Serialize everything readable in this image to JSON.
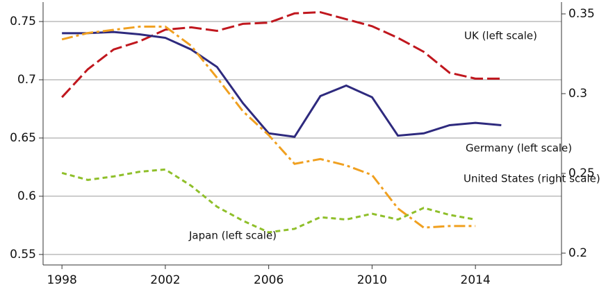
{
  "chart_data": {
    "type": "line",
    "x": [
      1998,
      1999,
      2000,
      2001,
      2002,
      2003,
      2004,
      2005,
      2006,
      2007,
      2008,
      2009,
      2010,
      2011,
      2012,
      2013,
      2014,
      2015
    ],
    "xlim": [
      1997.27,
      2017.33
    ],
    "xticks": [
      1998,
      2002,
      2006,
      2010,
      2014
    ],
    "ylim": [
      0.541,
      0.7667
    ],
    "yticks": [
      0.55,
      0.6,
      0.65,
      0.7,
      0.75
    ],
    "y2lim": [
      0.1926,
      0.3574
    ],
    "y2ticks": [
      0.2,
      0.25,
      0.3,
      0.35
    ],
    "grid": true,
    "series": [
      {
        "name": "UK (left scale)",
        "color": "#c0171e",
        "dash": "18 6",
        "values": [
          0.685,
          0.709,
          0.726,
          0.733,
          0.743,
          0.745,
          0.742,
          0.748,
          0.749,
          0.757,
          0.758,
          0.752,
          0.746,
          0.736,
          0.724,
          0.706,
          0.701,
          0.701
        ]
      },
      {
        "name": "Germany (left scale)",
        "color": "#2e2a7e",
        "dash": "none",
        "values": [
          0.74,
          0.74,
          0.741,
          0.739,
          0.736,
          0.726,
          0.711,
          0.68,
          0.654,
          0.651,
          0.686,
          0.695,
          0.685,
          0.652,
          0.654,
          0.661,
          0.663,
          0.661
        ]
      },
      {
        "name": "United States (right scale)",
        "color": "#f0a020",
        "dash": "16 5 4 5",
        "axis": "y2",
        "values": [
          0.334,
          0.338,
          0.34,
          0.342,
          0.342,
          0.33,
          0.31,
          0.289,
          0.274,
          0.256,
          0.259,
          0.255,
          0.249,
          0.228,
          0.216,
          0.217,
          0.217,
          null
        ]
      },
      {
        "name": "Japan (left scale)",
        "color": "#8fbf2a",
        "dash": "7 5",
        "values": [
          0.62,
          0.614,
          0.617,
          0.621,
          0.623,
          0.609,
          0.591,
          0.579,
          0.569,
          0.572,
          0.582,
          0.58,
          0.585,
          0.58,
          0.59,
          0.584,
          0.58,
          null
        ]
      }
    ]
  }
}
